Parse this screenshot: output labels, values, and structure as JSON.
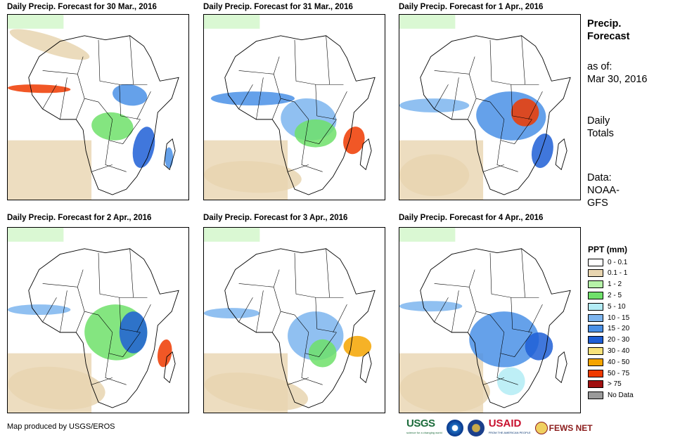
{
  "panels": [
    {
      "title": "Daily Precip. Forecast for 30 Mar., 2016"
    },
    {
      "title": "Daily Precip. Forecast for 31 Mar., 2016"
    },
    {
      "title": "Daily Precip. Forecast for 1 Apr., 2016"
    },
    {
      "title": "Daily Precip. Forecast for 2 Apr., 2016"
    },
    {
      "title": "Daily Precip. Forecast for 3 Apr., 2016"
    },
    {
      "title": "Daily Precip. Forecast for 4 Apr., 2016"
    }
  ],
  "side": {
    "title_line1": "Precip.",
    "title_line2": "Forecast",
    "asof_label": "as of:",
    "asof_date": "Mar 30, 2016",
    "totals_line1": "Daily",
    "totals_line2": "Totals",
    "data_label": "Data:",
    "data_line1": "NOAA-",
    "data_line2": "GFS"
  },
  "legend": {
    "title": "PPT (mm)",
    "items": [
      {
        "label": "0 - 0.1",
        "color": "#ffffff"
      },
      {
        "label": "0.1 - 1",
        "color": "#e8d5b0"
      },
      {
        "label": "1 - 2",
        "color": "#b6f2a8"
      },
      {
        "label": "2 - 5",
        "color": "#6fe06a"
      },
      {
        "label": "5 - 10",
        "color": "#b3ecf5"
      },
      {
        "label": "10 - 15",
        "color": "#7db5ef"
      },
      {
        "label": "15 - 20",
        "color": "#4a90e6"
      },
      {
        "label": "20 - 30",
        "color": "#1f5fd6"
      },
      {
        "label": "30 - 40",
        "color": "#f7e27a"
      },
      {
        "label": "40 - 50",
        "color": "#f5a400"
      },
      {
        "label": "50 - 75",
        "color": "#ef3a00"
      },
      {
        "label": "> 75",
        "color": "#a01010"
      },
      {
        "label": "No Data",
        "color": "#9a9a9a"
      }
    ]
  },
  "credit": "Map produced by USGS/EROS",
  "logos": {
    "usgs": "USGS",
    "usgs_tagline": "science for a changing world",
    "usaid": "USAID",
    "usaid_tagline": "FROM THE AMERICAN PEOPLE",
    "fews": "FEWS NET"
  }
}
